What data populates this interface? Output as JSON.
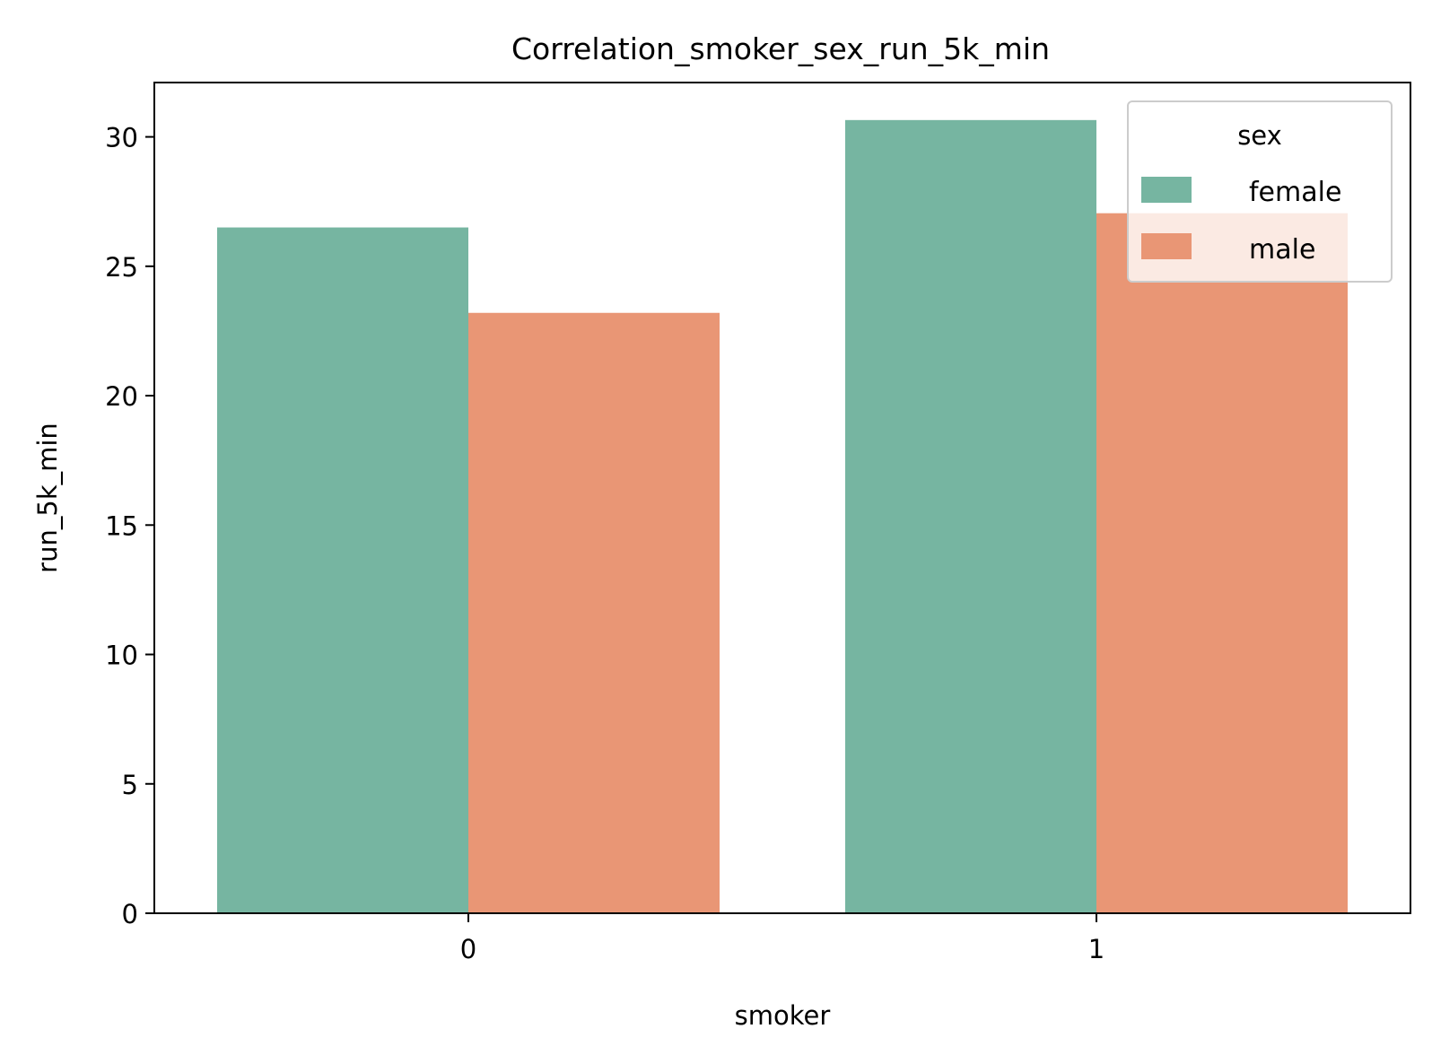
{
  "chart_data": {
    "type": "bar",
    "title": "Correlation_smoker_sex_run_5k_min",
    "xlabel": "smoker",
    "ylabel": "run_5k_min",
    "categories": [
      "0",
      "1"
    ],
    "series": [
      {
        "name": "female",
        "values": [
          26.5,
          30.65
        ],
        "color": "#76b5a1"
      },
      {
        "name": "male",
        "values": [
          23.2,
          27.05
        ],
        "color": "#e99675"
      }
    ],
    "ylim": [
      0,
      32.1
    ],
    "yticks": [
      0,
      5,
      10,
      15,
      20,
      25,
      30
    ],
    "grid": false,
    "legend": {
      "title": "sex",
      "placement": "top-right"
    }
  }
}
